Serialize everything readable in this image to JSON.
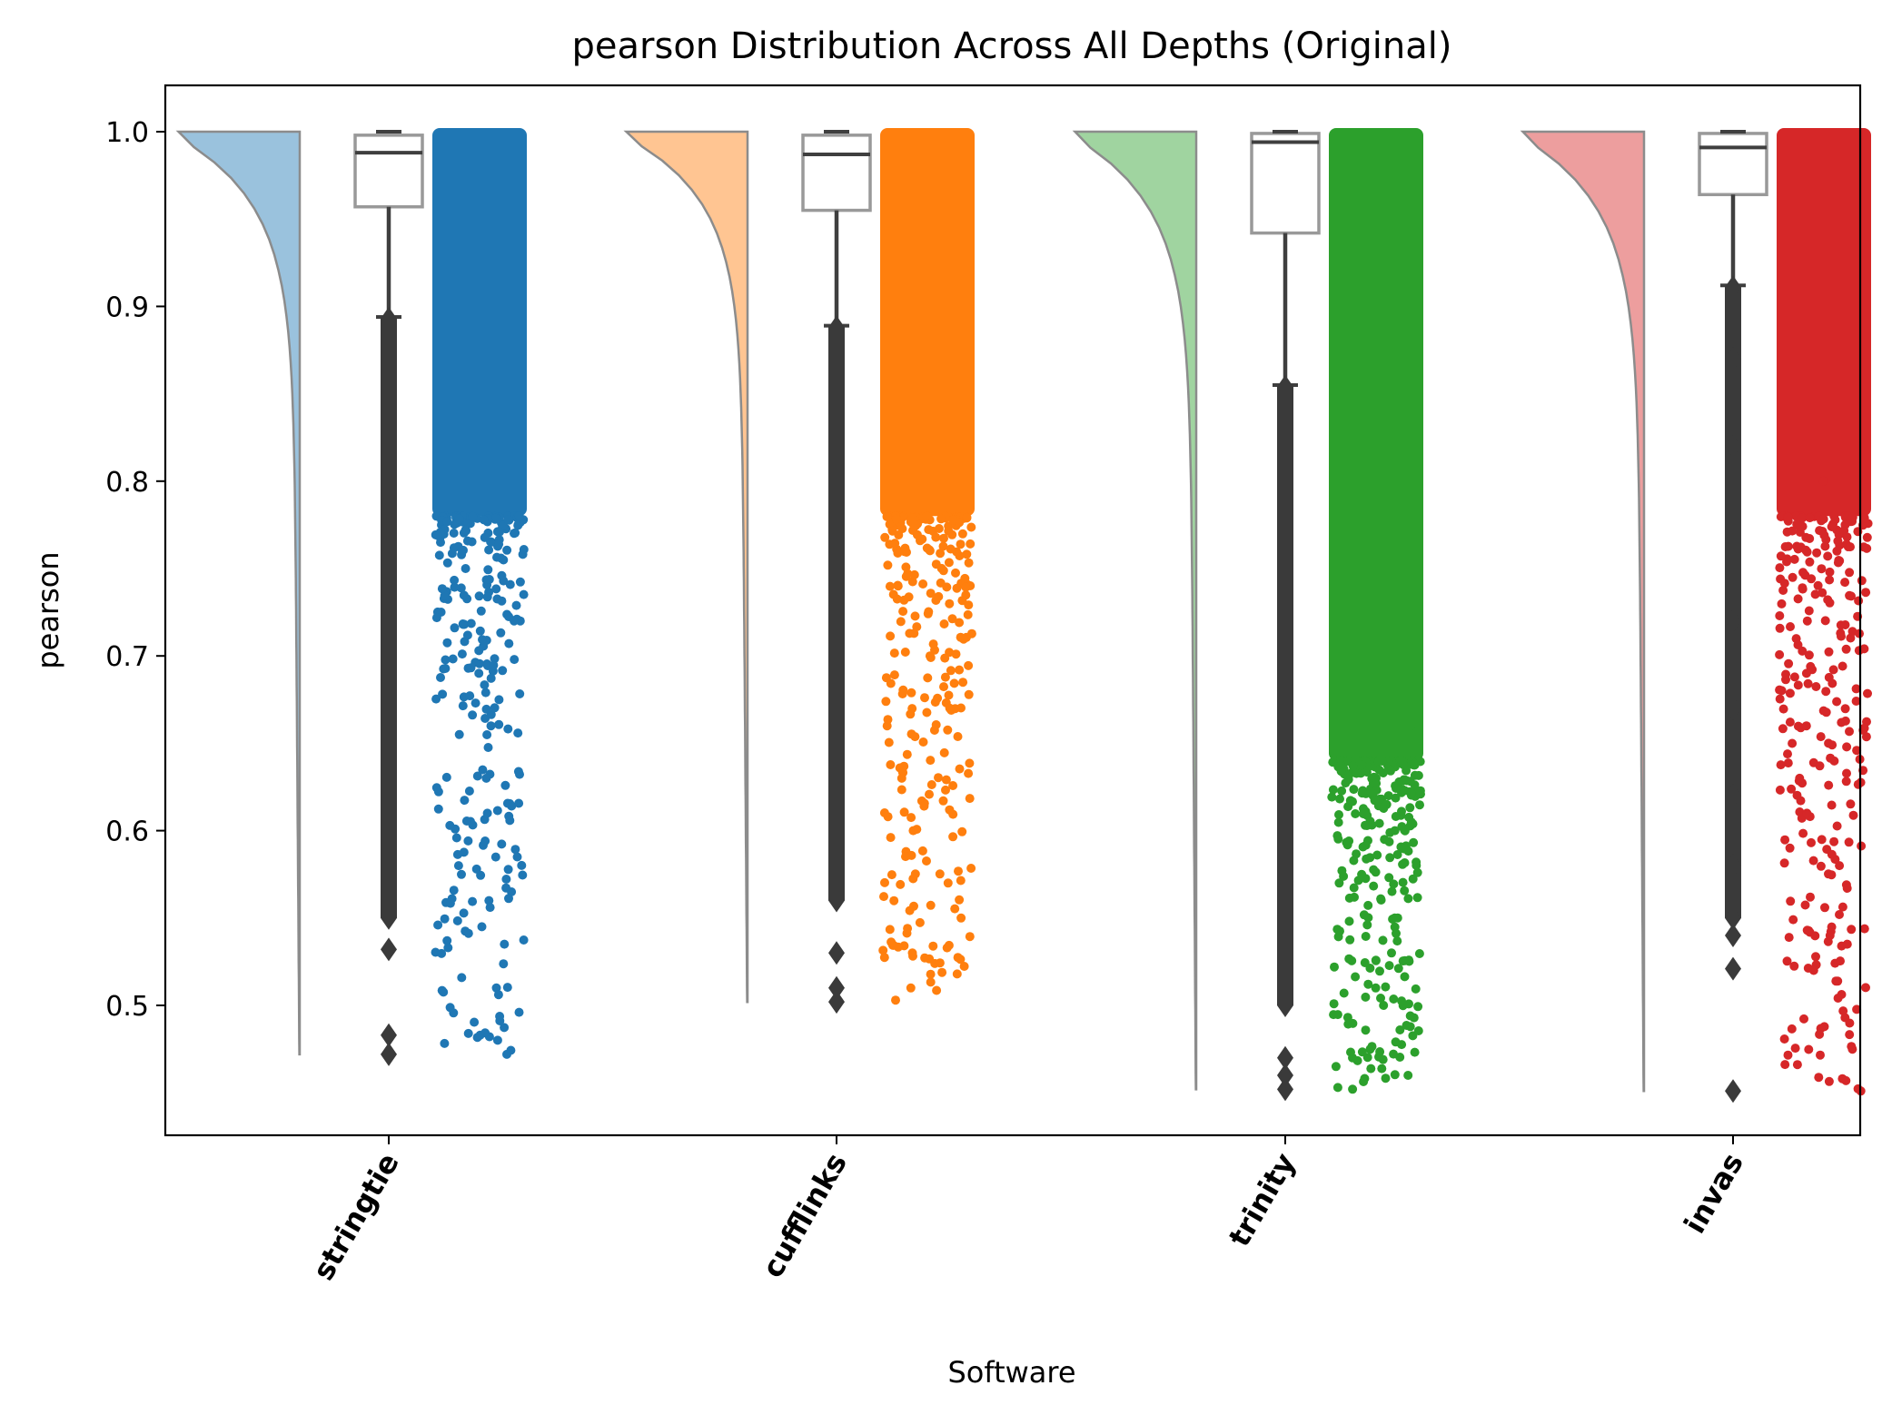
{
  "chart_data": {
    "type": "raincloud",
    "title": "pearson Distribution Across All Depths (Original)",
    "xlabel": "Software",
    "ylabel": "pearson",
    "ylim": [
      0.42,
      1.025
    ],
    "yticks": [
      0.5,
      0.6,
      0.7,
      0.8,
      0.9,
      1.0
    ],
    "ytick_labels": [
      "0.5",
      "0.6",
      "0.7",
      "0.8",
      "0.9",
      "1.0"
    ],
    "categories": [
      "stringtie",
      "cufflinks",
      "trinity",
      "invas"
    ],
    "colors": [
      "#1f77b4",
      "#ff7f0e",
      "#2ca02c",
      "#d62728"
    ],
    "series": [
      {
        "category": "stringtie",
        "box": {
          "q1": 0.957,
          "median": 0.988,
          "q3": 0.998,
          "whisker_low": 0.894,
          "whisker_high": 1.0
        },
        "min": 0.472,
        "max": 1.0,
        "outliers": [
          0.893,
          0.86,
          0.82,
          0.78,
          0.74,
          0.7,
          0.66,
          0.62,
          0.58,
          0.55,
          0.532,
          0.483,
          0.472
        ],
        "sparse_points": [
          0.483,
          0.472,
          0.533,
          0.537,
          0.545,
          0.56,
          0.585,
          0.61,
          0.63,
          0.66,
          0.69,
          0.72,
          0.75,
          0.78
        ]
      },
      {
        "category": "cufflinks",
        "box": {
          "q1": 0.955,
          "median": 0.987,
          "q3": 0.998,
          "whisker_low": 0.889,
          "whisker_high": 1.0
        },
        "min": 0.502,
        "max": 1.0,
        "outliers": [
          0.888,
          0.85,
          0.8,
          0.75,
          0.7,
          0.65,
          0.6,
          0.56,
          0.53,
          0.51,
          0.502
        ],
        "sparse_points": [
          0.503,
          0.51,
          0.518,
          0.53,
          0.55,
          0.57,
          0.6,
          0.63,
          0.66,
          0.7,
          0.74
        ]
      },
      {
        "category": "trinity",
        "box": {
          "q1": 0.942,
          "median": 0.994,
          "q3": 0.999,
          "whisker_low": 0.855,
          "whisker_high": 1.0
        },
        "min": 0.452,
        "max": 1.0,
        "outliers": [
          0.854,
          0.8,
          0.75,
          0.7,
          0.65,
          0.6,
          0.55,
          0.5,
          0.47,
          0.46,
          0.452
        ],
        "sparse_points": [
          0.453,
          0.46,
          0.465,
          0.47,
          0.494,
          0.5,
          0.51,
          0.53,
          0.55,
          0.57,
          0.6,
          0.63,
          0.66
        ]
      },
      {
        "category": "invas",
        "box": {
          "q1": 0.964,
          "median": 0.991,
          "q3": 0.999,
          "whisker_low": 0.912,
          "whisker_high": 1.0
        },
        "min": 0.451,
        "max": 1.0,
        "outliers": [
          0.911,
          0.87,
          0.82,
          0.77,
          0.72,
          0.67,
          0.62,
          0.58,
          0.55,
          0.54,
          0.521,
          0.451
        ],
        "sparse_points": [
          0.451,
          0.52,
          0.54,
          0.552,
          0.556,
          0.58,
          0.59,
          0.61,
          0.63,
          0.65,
          0.66,
          0.69,
          0.72,
          0.76,
          0.8
        ]
      }
    ]
  }
}
